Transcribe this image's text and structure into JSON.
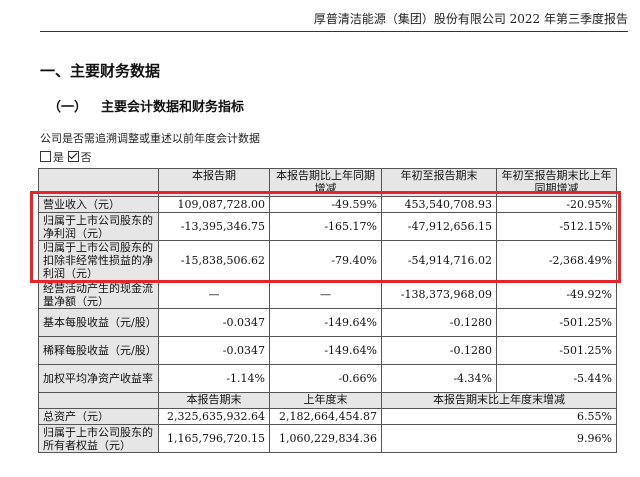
{
  "header": {
    "title": "厚普清洁能源（集团）股份有限公司 2022 年第三季度报告"
  },
  "section": {
    "title": "一、主要财务数据"
  },
  "subsection": {
    "number": "（一）",
    "title": "主要会计数据和财务指标"
  },
  "note": "公司是否需追溯调整或重述以前年度会计数据",
  "choice": {
    "option_yes": "是",
    "option_no": "否",
    "selected": "否"
  },
  "table1": {
    "headers": [
      "",
      "本报告期",
      "本报告期比上年同期增减",
      "年初至报告期末",
      "年初至报告期末比上年同期增减"
    ],
    "rows": [
      {
        "label": "营业收入（元）",
        "v1": "109,087,728.00",
        "v2": "-49.59%",
        "v3": "453,540,708.93",
        "v4": "-20.95%"
      },
      {
        "label": "归属于上市公司股东的净利润（元）",
        "v1": "-13,395,346.75",
        "v2": "-165.17%",
        "v3": "-47,912,656.15",
        "v4": "-512.15%"
      },
      {
        "label": "归属于上市公司股东的扣除非经常性损益的净利润（元）",
        "v1": "-15,838,506.62",
        "v2": "-79.40%",
        "v3": "-54,914,716.02",
        "v4": "-2,368.49%"
      },
      {
        "label": "经营活动产生的现金流量净额（元）",
        "v1": "—",
        "v2": "—",
        "v3": "-138,373,968.09",
        "v4": "-49.92%"
      },
      {
        "label": "基本每股收益（元/股）",
        "v1": "-0.0347",
        "v2": "-149.64%",
        "v3": "-0.1280",
        "v4": "-501.25%"
      },
      {
        "label": "稀释每股收益（元/股）",
        "v1": "-0.0347",
        "v2": "-149.64%",
        "v3": "-0.1280",
        "v4": "-501.25%"
      },
      {
        "label": "加权平均净资产收益率",
        "v1": "-1.14%",
        "v2": "-0.66%",
        "v3": "-4.34%",
        "v4": "-5.44%"
      }
    ]
  },
  "table2": {
    "headers": [
      "",
      "本报告期末",
      "上年度末",
      "本报告期末比上年度末增减"
    ],
    "rows": [
      {
        "label": "总资产（元）",
        "v1": "2,325,635,932.64",
        "v2": "2,182,664,454.87",
        "v3": "6.55%"
      },
      {
        "label": "归属于上市公司股东的所有者权益（元）",
        "v1": "1,165,796,720.15",
        "v2": "1,060,229,834.36",
        "v3": "9.96%"
      }
    ]
  },
  "highlight": {
    "color": "#e4262c"
  }
}
